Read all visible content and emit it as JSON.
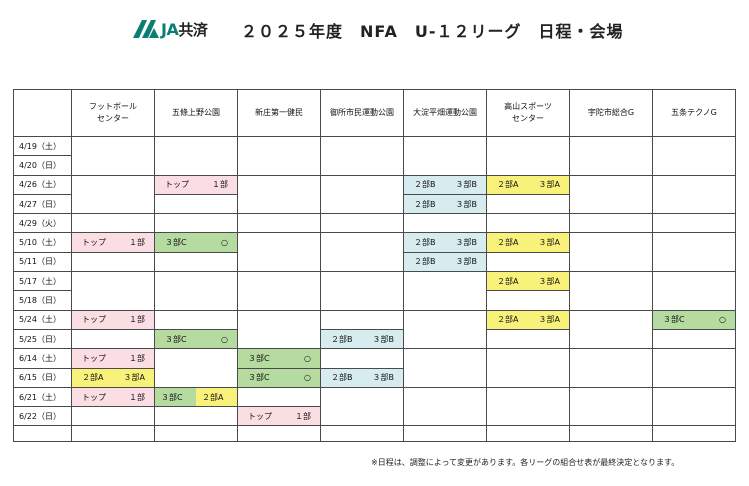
{
  "logo": {
    "ja": "JA",
    "text": "共済"
  },
  "title": "２０２５年度　NFA　U-１２リーグ　日程・会場",
  "venues": [
    {
      "name": "フットボール\nセンター"
    },
    {
      "name": "五條上野公園"
    },
    {
      "name": "新庄第一健民"
    },
    {
      "name": "御所市民運動公園"
    },
    {
      "name": "大淀平畑運動公園"
    },
    {
      "name": "高山スポーツ\nセンター"
    },
    {
      "name": "宇陀市総合G"
    },
    {
      "name": "五条テクノG"
    }
  ],
  "dates": [
    "4/19（土）",
    "4/20（日）",
    "4/26（土）",
    "4/27（日）",
    "4/29（火）",
    "5/10（土）",
    "5/11（日）",
    "5/17（土）",
    "5/18（日）",
    "5/24（土）",
    "5/25（日）",
    "6/14（土）",
    "6/15（日）",
    "6/21（土）",
    "6/22（日）"
  ],
  "labels": {
    "top": "トップ",
    "div1": "１部",
    "div2a": "２部A",
    "div3a": "３部A",
    "div2b": "２部B",
    "div3b": "３部B",
    "div3c": "３部C",
    "circle": "○"
  },
  "footnote": "※日程は、調整によって変更があります。各リーグの組合せ表が最終決定となります。",
  "colors": {
    "pink": "#fbdde4",
    "yellow": "#f9f27a",
    "blue": "#d6ecee",
    "green": "#b5dba1",
    "accent": "#0b7e74"
  }
}
